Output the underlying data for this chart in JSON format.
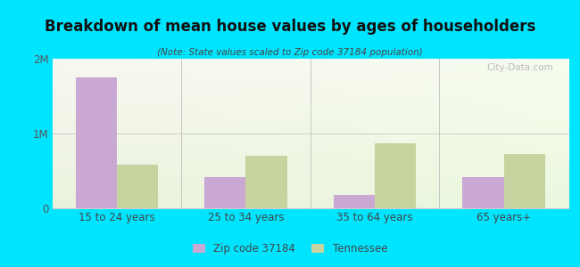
{
  "title": "Breakdown of mean house values by ages of householders",
  "subtitle": "(Note: State values scaled to Zip code 37184 population)",
  "categories": [
    "15 to 24 years",
    "25 to 34 years",
    "35 to 64 years",
    "65 years+"
  ],
  "zip_values": [
    1750000,
    420000,
    175000,
    420000
  ],
  "state_values": [
    580000,
    700000,
    870000,
    730000
  ],
  "zip_color": "#c9a8d4",
  "state_color": "#c8d4a0",
  "background_outer": "#00e5ff",
  "ylim": [
    0,
    2000000
  ],
  "yticks": [
    0,
    1000000,
    2000000
  ],
  "ytick_labels": [
    "0",
    "1M",
    "2M"
  ],
  "legend_zip": "Zip code 37184",
  "legend_state": "Tennessee",
  "bar_width": 0.32,
  "watermark": "City-Data.com"
}
